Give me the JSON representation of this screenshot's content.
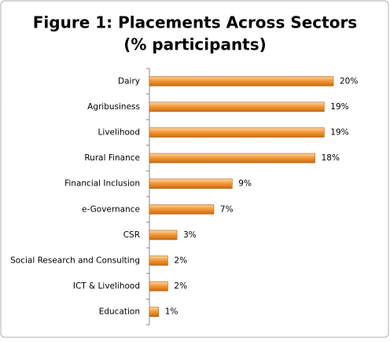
{
  "chart_data": {
    "type": "bar",
    "orientation": "horizontal",
    "title": [
      "Figure 1: Placements Across Sectors",
      "(% participants)"
    ],
    "categories": [
      "Dairy",
      "Agribusiness",
      "Livelihood",
      "Rural Finance",
      "Financial Inclusion",
      "e-Governance",
      "CSR",
      "Social Research and Consulting",
      "ICT & Livelihood",
      "Education"
    ],
    "values": [
      20,
      19,
      19,
      18,
      9,
      7,
      3,
      2,
      2,
      1
    ],
    "value_labels": [
      "20%",
      "19%",
      "19%",
      "18%",
      "9%",
      "7%",
      "3%",
      "2%",
      "2%",
      "1%"
    ],
    "color": "#f0a040"
  }
}
